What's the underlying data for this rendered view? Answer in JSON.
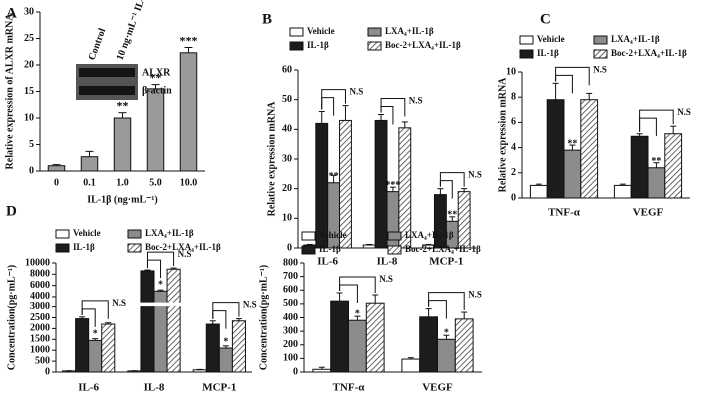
{
  "chart_data": [
    {
      "type": "bar",
      "label": "A",
      "ylabel": "Relative expression of ALXR mRNA",
      "xlabel": "IL-1β (ng·mL⁻¹)",
      "categories": [
        "0",
        "0.1",
        "1.0",
        "5.0",
        "10.0"
      ],
      "values": [
        1,
        2.7,
        10,
        15.5,
        22.3
      ],
      "errors": [
        0.2,
        1,
        1,
        0.8,
        1
      ],
      "annotations": [
        null,
        null,
        "**",
        "**",
        "***"
      ],
      "color": "#9a9a9a",
      "ylim": [
        0,
        30
      ],
      "yticks": [
        0,
        5,
        10,
        15,
        20,
        25,
        30
      ],
      "inset": {
        "lanes": [
          "Control",
          "10 ng·mL⁻¹ IL-1β"
        ],
        "bands": [
          "ALXR",
          "β-actin"
        ]
      }
    },
    {
      "type": "grouped_bar",
      "label": "B",
      "ylabel": "Relative expression mRNA",
      "categories": [
        "IL-6",
        "IL-8",
        "MCP-1"
      ],
      "series": [
        {
          "name": "Vehicle",
          "color": "#ffffff",
          "values": [
            1,
            1,
            1
          ],
          "errors": [
            0.2,
            0.2,
            0.2
          ]
        },
        {
          "name": "IL-1β",
          "color": "#1c1c1c",
          "values": [
            42,
            43,
            18
          ],
          "errors": [
            4,
            2,
            2
          ]
        },
        {
          "name": "LXA₄+IL-1β",
          "color": "#8c8c8c",
          "values": [
            22,
            19,
            9
          ],
          "errors": [
            2.5,
            1.5,
            1.5
          ]
        },
        {
          "name": "Boc-2+LXA₄+IL-1β",
          "color": "#ffffff",
          "hatch": true,
          "values": [
            43,
            40.5,
            19
          ],
          "errors": [
            5,
            2,
            1
          ]
        }
      ],
      "annotations": [
        "**",
        "***",
        "**"
      ],
      "comparisons": [
        "N.S",
        "N.S",
        "N.S"
      ],
      "ylim": [
        0,
        60
      ],
      "yticks": [
        0,
        10,
        20,
        30,
        40,
        50,
        60
      ]
    },
    {
      "type": "grouped_bar",
      "label": "C",
      "ylabel": "Relative expression mRNA",
      "categories": [
        "TNF-α",
        "VEGF"
      ],
      "series": [
        {
          "name": "Vehicle",
          "color": "#ffffff",
          "values": [
            1,
            1
          ],
          "errors": [
            0.1,
            0.1
          ]
        },
        {
          "name": "IL-1β",
          "color": "#1c1c1c",
          "values": [
            7.8,
            4.9
          ],
          "errors": [
            1.3,
            0.2
          ]
        },
        {
          "name": "LXA₄+IL-1β",
          "color": "#8c8c8c",
          "values": [
            3.8,
            2.4
          ],
          "errors": [
            0.4,
            0.4
          ]
        },
        {
          "name": "Boc-2+LXA₄+IL-1β",
          "color": "#ffffff",
          "hatch": true,
          "values": [
            7.8,
            5.1
          ],
          "errors": [
            0.5,
            0.6
          ]
        }
      ],
      "annotations": [
        "**",
        "**"
      ],
      "comparisons": [
        "N.S",
        "N.S"
      ],
      "ylim": [
        0,
        10
      ],
      "yticks": [
        0,
        2,
        4,
        6,
        8,
        10
      ]
    },
    {
      "type": "grouped_bar",
      "label": "D",
      "ylabel": "Concentration(pg·mL⁻¹)",
      "categories": [
        "IL-6",
        "IL-8",
        "MCP-1"
      ],
      "series": [
        {
          "name": "Vehicle",
          "color": "#ffffff",
          "values": [
            50,
            50,
            100
          ],
          "errors": [
            10,
            10,
            20
          ]
        },
        {
          "name": "IL-1β",
          "color": "#1c1c1c",
          "values": [
            2450,
            8600,
            2200
          ],
          "errors": [
            80,
            150,
            150
          ]
        },
        {
          "name": "LXA₄+IL-1β",
          "color": "#8c8c8c",
          "values": [
            1450,
            5000,
            1100
          ],
          "errors": [
            80,
            200,
            100
          ]
        },
        {
          "name": "Boc-2+LXA₄+IL-1β",
          "color": "#ffffff",
          "hatch": true,
          "values": [
            2200,
            8900,
            2350
          ],
          "errors": [
            60,
            200,
            100
          ]
        }
      ],
      "annotations": [
        "*",
        "*",
        "*"
      ],
      "comparisons": [
        "N.S",
        "N.S",
        "N.S"
      ],
      "ylim": [
        0,
        10000
      ],
      "ybreak": 3000,
      "yticks": [
        0,
        500,
        1000,
        1500,
        2000,
        2500,
        3000,
        4000,
        6000,
        8000,
        10000
      ]
    },
    {
      "type": "grouped_bar",
      "ylabel": "Concentration(pg·mL⁻¹)",
      "categories": [
        "TNF-α",
        "VEGF"
      ],
      "series": [
        {
          "name": "Vehicle",
          "color": "#ffffff",
          "values": [
            20,
            95
          ],
          "errors": [
            15,
            10
          ]
        },
        {
          "name": "IL-1β",
          "color": "#1c1c1c",
          "values": [
            520,
            405
          ],
          "errors": [
            60,
            60
          ]
        },
        {
          "name": "LXA₄+IL-1β",
          "color": "#8c8c8c",
          "values": [
            380,
            240
          ],
          "errors": [
            30,
            30
          ]
        },
        {
          "name": "Boc-2+LXA₄+IL-1β",
          "color": "#ffffff",
          "hatch": true,
          "values": [
            505,
            390
          ],
          "errors": [
            60,
            50
          ]
        }
      ],
      "annotations": [
        "*",
        "*"
      ],
      "comparisons": [
        "N.S",
        "N.S"
      ],
      "ylim": [
        0,
        800
      ],
      "yticks": [
        0,
        100,
        200,
        300,
        400,
        500,
        600,
        700,
        800
      ]
    }
  ]
}
